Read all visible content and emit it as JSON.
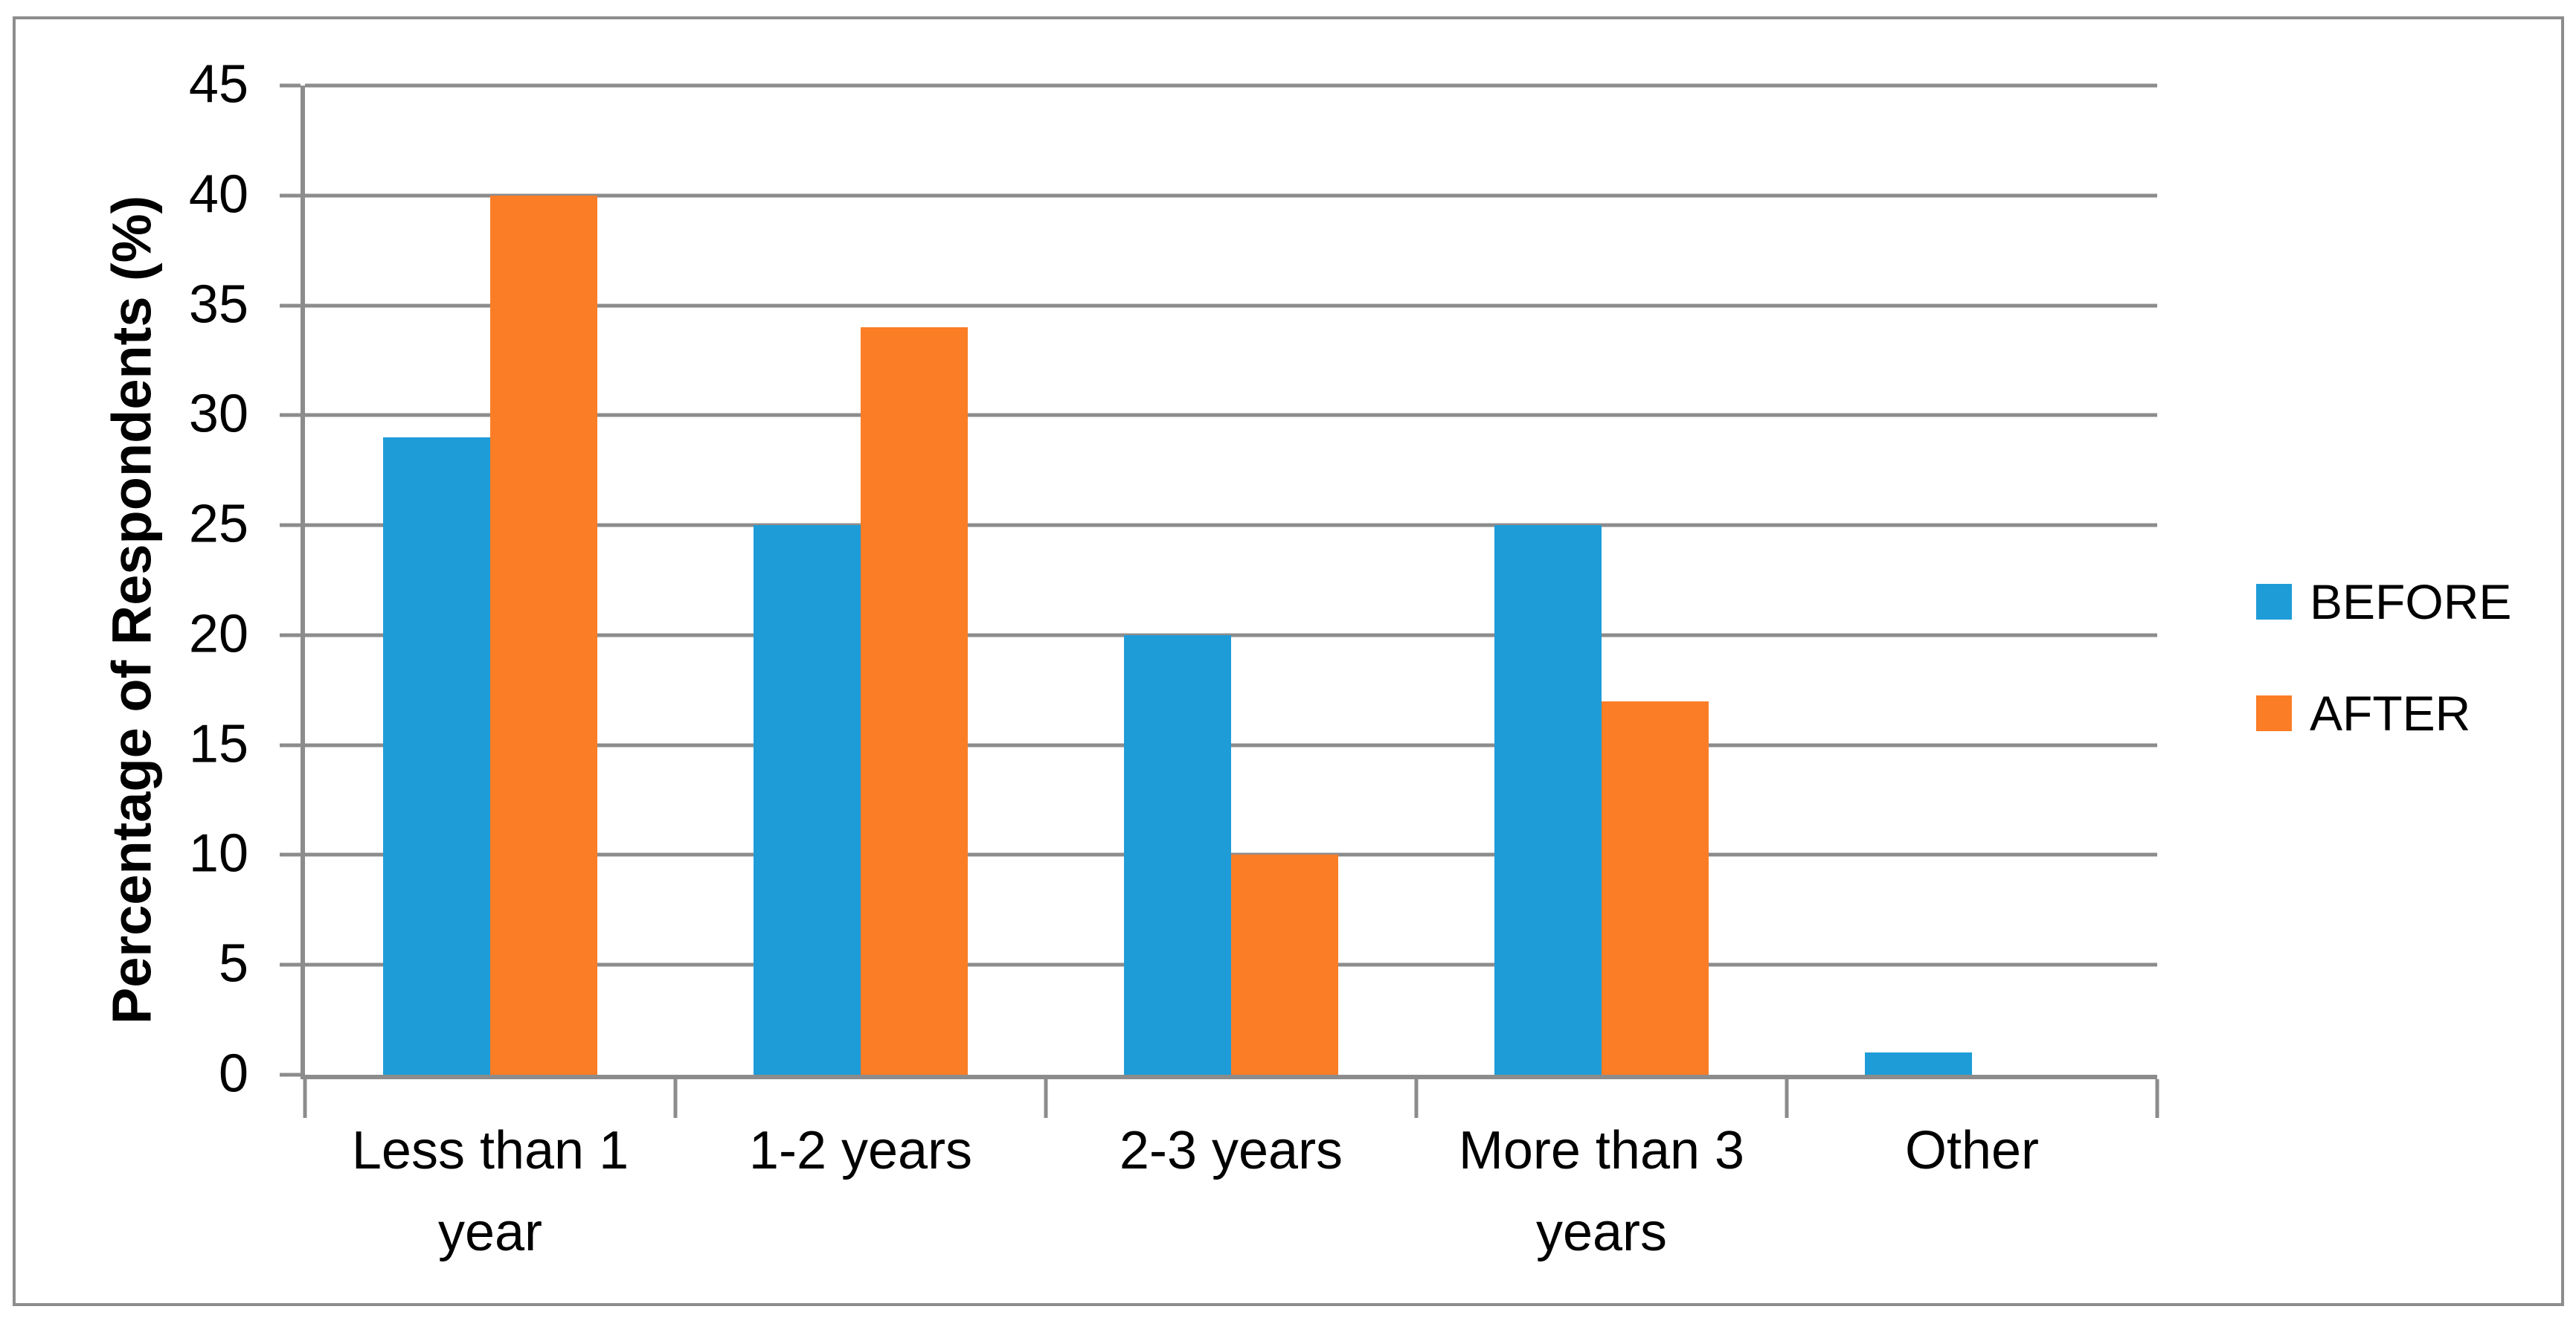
{
  "chart_data": {
    "type": "bar",
    "title": "",
    "categories": [
      "Less than 1 year",
      "1-2 years",
      "2-3 years",
      "More than 3 years",
      "Other"
    ],
    "series": [
      {
        "name": "BEFORE",
        "color": "#1e9cd8",
        "values": [
          29,
          25,
          20,
          25,
          1
        ]
      },
      {
        "name": "AFTER",
        "color": "#fb7d26",
        "values": [
          40,
          34,
          10,
          17,
          0
        ]
      }
    ],
    "xlabel": "",
    "ylabel": "Percentage of Respondents (%)",
    "ylim": [
      0,
      45
    ],
    "ytick_step": 5,
    "yticks": [
      45,
      40,
      35,
      30,
      25,
      20,
      15,
      10,
      5,
      0
    ],
    "grid": true,
    "gridline_color": "#8c8c8c",
    "axis_color": "#8c8c8c",
    "frame_border_color": "#8d8d8d",
    "legend_position": "right"
  }
}
